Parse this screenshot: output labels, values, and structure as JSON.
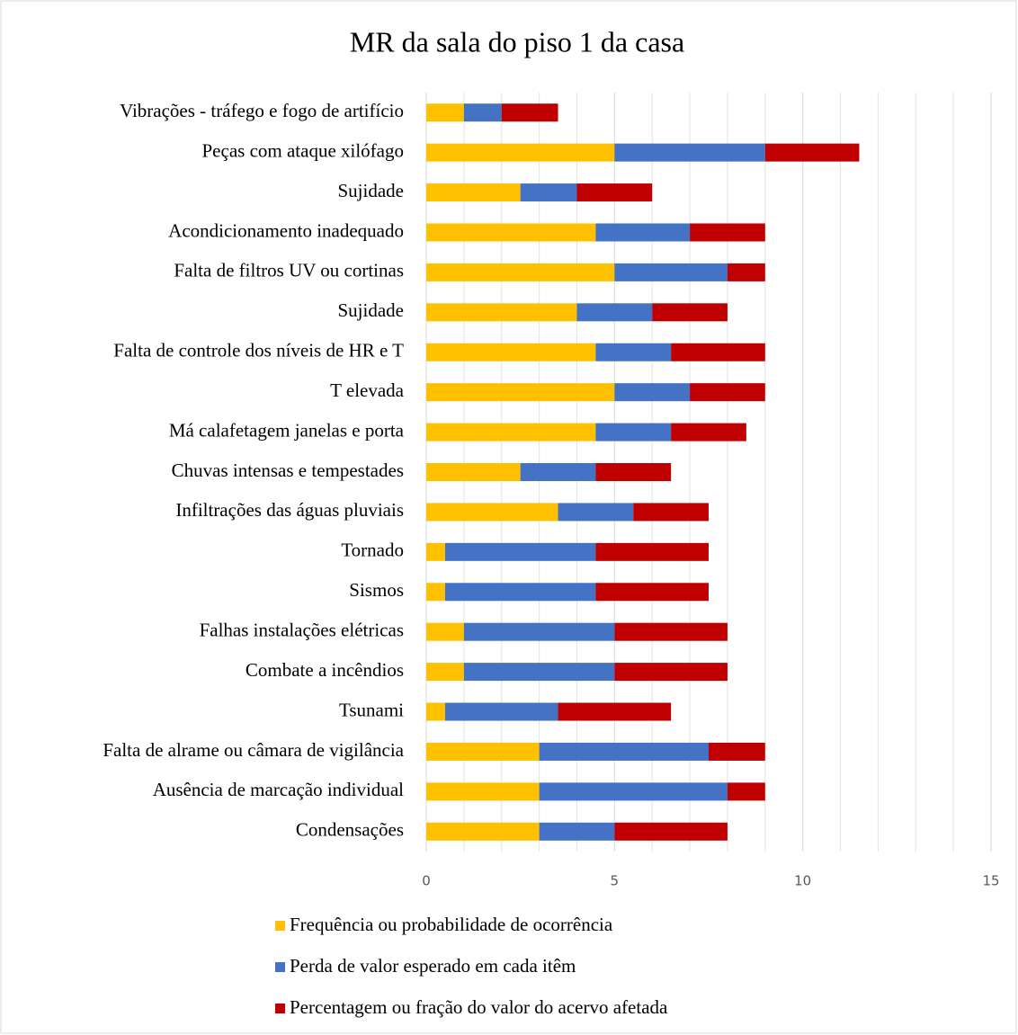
{
  "chart_data": {
    "type": "stacked_barh",
    "title": "MR da sala do piso 1 da casa",
    "categories": [
      "Vibrações - tráfego e fogo de artifício",
      "Peças com ataque xilófago",
      "Sujidade",
      "Acondicionamento inadequado",
      "Falta de filtros UV ou cortinas",
      "Sujidade",
      "Falta de controle dos níveis de HR e T",
      "T elevada",
      "Má calafetagem janelas e porta",
      "Chuvas intensas e tempestades",
      "Infiltrações das águas pluviais",
      "Tornado",
      "Sismos",
      "Falhas instalações elétricas",
      "Combate a incêndios",
      "Tsunami",
      "Falta de alrame ou câmara de vigilância",
      "Ausência de marcação individual",
      "Condensações"
    ],
    "series": [
      {
        "name": "Frequência ou probabilidade de ocorrência",
        "color": "#ffc000",
        "values": [
          1,
          5,
          2.5,
          4.5,
          5,
          4,
          4.5,
          5,
          4.5,
          2.5,
          3.5,
          0.5,
          0.5,
          1,
          1,
          0.5,
          3,
          3,
          3
        ]
      },
      {
        "name": "Perda de valor esperado em cada itêm",
        "color": "#4472c4",
        "values": [
          1,
          4,
          1.5,
          2.5,
          3,
          2,
          2,
          2,
          2,
          2,
          2,
          4,
          4,
          4,
          4,
          3,
          4.5,
          5,
          2
        ]
      },
      {
        "name": "Percentagem ou fração do valor do acervo afetada",
        "color": "#c00000",
        "values": [
          1.5,
          2.5,
          2,
          2,
          1,
          2,
          2.5,
          2,
          2,
          2,
          2,
          3,
          3,
          3,
          3,
          3,
          1.5,
          1,
          3
        ]
      }
    ],
    "xlim": [
      0,
      15
    ],
    "xticks": [
      0,
      5,
      10,
      15
    ],
    "minor_xticks": [
      1,
      2,
      3,
      4,
      6,
      7,
      8,
      9,
      11,
      12,
      13,
      14
    ],
    "grid": true,
    "legend": "bottom"
  }
}
